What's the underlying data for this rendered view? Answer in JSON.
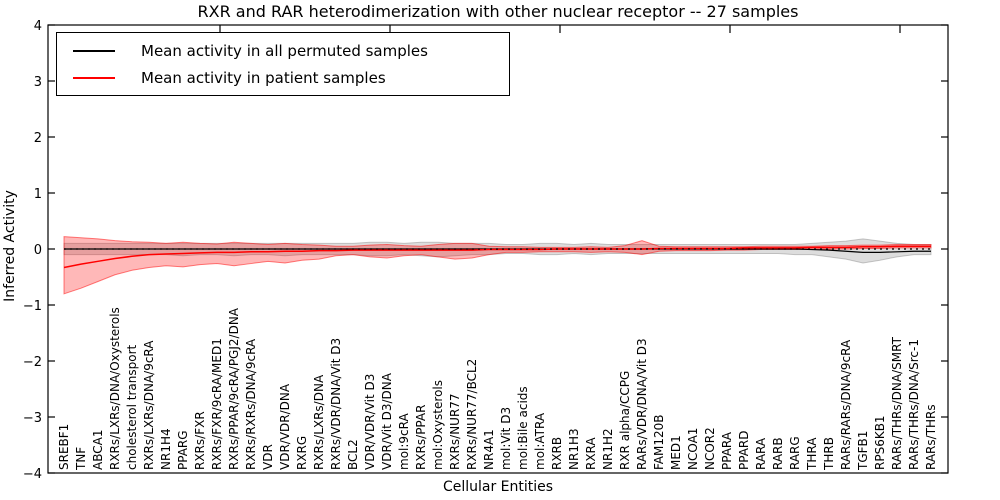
{
  "chart_data": {
    "type": "line",
    "title": "RXR and RAR heterodimerization with other nuclear receptor -- 27 samples",
    "xlabel": "Cellular Entities",
    "ylabel": "Inferred Activity",
    "ylim": [
      -4,
      4
    ],
    "yticks": [
      -4,
      -3,
      -2,
      -1,
      0,
      1,
      2,
      3,
      4
    ],
    "grid": false,
    "legend_position": "upper left",
    "zero_line": {
      "style": "dotted",
      "color": "#000000",
      "y": 0
    },
    "categories": [
      "SREBF1",
      "TNF",
      "ABCA1",
      "RXRs/LXRs/DNA/Oxysterols",
      "cholesterol transport",
      "RXRs/LXRs/DNA/9cRA",
      "NR1H4",
      "PPARG",
      "RXRs/FXR",
      "RXRs/FXR/9cRA/MED1",
      "RXRs/PPAR/9cRA/PGJ2/DNA",
      "RXRs/RXRs/DNA/9cRA",
      "VDR",
      "VDR/VDR/DNA",
      "RXRG",
      "RXRs/LXRs/DNA",
      "RXRs/VDR/DNA/Vit D3",
      "BCL2",
      "VDR/VDR/Vit D3",
      "VDR/Vit D3/DNA",
      "mol:9cRA",
      "RXRs/PPAR",
      "mol:Oxysterols",
      "RXRs/NUR77",
      "RXRs/NUR77/BCL2",
      "NR4A1",
      "mol:Vit D3",
      "mol:Bile acids",
      "mol:ATRA",
      "RXRB",
      "NR1H3",
      "RXRA",
      "NR1H2",
      "RXR alpha/CCPG",
      "RARs/VDR/DNA/Vit D3",
      "FAM120B",
      "MED1",
      "NCOA1",
      "NCOR2",
      "PPARA",
      "PPARD",
      "RARA",
      "RARB",
      "RARG",
      "THRA",
      "THRB",
      "RARs/RARs/DNA/9cRA",
      "TGFB1",
      "RPS6KB1",
      "RARs/THRs/DNA/SMRT",
      "RARs/THRs/DNA/Src-1",
      "RARs/THRs"
    ],
    "series": [
      {
        "name": "Mean activity in all permuted samples",
        "color": "#000000",
        "band_color": "rgba(120,120,120,0.25)",
        "band_edge_color": "rgba(120,120,120,0.4)",
        "values": [
          0,
          0,
          0,
          0,
          0,
          0,
          0,
          0,
          0,
          0,
          0,
          0,
          0,
          0,
          0,
          0,
          0,
          0,
          0,
          0,
          0,
          0,
          0,
          0,
          0,
          0,
          0,
          0,
          0,
          0,
          0,
          0,
          0,
          0,
          0,
          0,
          0,
          0,
          0,
          0,
          0,
          0,
          0,
          0,
          -0.01,
          -0.02,
          -0.04,
          -0.06,
          -0.06,
          -0.05,
          -0.04,
          -0.04
        ],
        "band_high": [
          0.1,
          0.1,
          0.1,
          0.1,
          0.1,
          0.1,
          0.1,
          0.1,
          0.1,
          0.1,
          0.1,
          0.1,
          0.1,
          0.1,
          0.1,
          0.1,
          0.1,
          0.1,
          0.12,
          0.12,
          0.1,
          0.12,
          0.12,
          0.1,
          0.1,
          0.1,
          0.08,
          0.08,
          0.1,
          0.1,
          0.08,
          0.1,
          0.08,
          0.08,
          0.08,
          0.08,
          0.08,
          0.08,
          0.08,
          0.08,
          0.08,
          0.08,
          0.08,
          0.08,
          0.1,
          0.12,
          0.14,
          0.18,
          0.14,
          0.1,
          0.08,
          0.08
        ],
        "band_low": [
          -0.1,
          -0.1,
          -0.1,
          -0.1,
          -0.1,
          -0.1,
          -0.1,
          -0.12,
          -0.1,
          -0.1,
          -0.12,
          -0.1,
          -0.1,
          -0.12,
          -0.1,
          -0.1,
          -0.1,
          -0.1,
          -0.12,
          -0.12,
          -0.1,
          -0.12,
          -0.14,
          -0.12,
          -0.1,
          -0.1,
          -0.08,
          -0.08,
          -0.1,
          -0.1,
          -0.08,
          -0.1,
          -0.08,
          -0.08,
          -0.08,
          -0.08,
          -0.08,
          -0.08,
          -0.08,
          -0.08,
          -0.08,
          -0.08,
          -0.08,
          -0.1,
          -0.1,
          -0.14,
          -0.18,
          -0.25,
          -0.2,
          -0.14,
          -0.1,
          -0.1
        ]
      },
      {
        "name": "Mean activity in patient samples",
        "color": "#ff0000",
        "band_color": "rgba(255,0,0,0.28)",
        "band_edge_color": "rgba(255,0,0,0.5)",
        "values": [
          -0.33,
          -0.27,
          -0.22,
          -0.17,
          -0.13,
          -0.1,
          -0.09,
          -0.08,
          -0.07,
          -0.06,
          -0.06,
          -0.05,
          -0.05,
          -0.04,
          -0.04,
          -0.03,
          -0.03,
          -0.02,
          -0.02,
          -0.02,
          -0.02,
          -0.02,
          -0.02,
          -0.02,
          -0.02,
          -0.01,
          -0.01,
          -0.01,
          -0.01,
          0.0,
          0.0,
          0.0,
          0.0,
          0.0,
          0.0,
          0.01,
          0.01,
          0.01,
          0.01,
          0.01,
          0.02,
          0.02,
          0.02,
          0.02,
          0.03,
          0.03,
          0.03,
          0.04,
          0.04,
          0.05,
          0.05,
          0.05
        ],
        "band_high": [
          0.22,
          0.2,
          0.18,
          0.15,
          0.13,
          0.12,
          0.1,
          0.12,
          0.1,
          0.09,
          0.12,
          0.1,
          0.08,
          0.1,
          0.08,
          0.07,
          0.05,
          0.05,
          0.07,
          0.08,
          0.06,
          0.05,
          0.08,
          0.1,
          0.1,
          0.05,
          0.04,
          0.04,
          0.03,
          0.03,
          0.03,
          0.04,
          0.03,
          0.06,
          0.15,
          0.05,
          0.04,
          0.04,
          0.04,
          0.04,
          0.04,
          0.05,
          0.05,
          0.05,
          0.05,
          0.06,
          0.06,
          0.07,
          0.07,
          0.08,
          0.08,
          0.08
        ],
        "band_low": [
          -0.8,
          -0.7,
          -0.58,
          -0.46,
          -0.38,
          -0.33,
          -0.3,
          -0.32,
          -0.28,
          -0.26,
          -0.3,
          -0.26,
          -0.22,
          -0.25,
          -0.2,
          -0.18,
          -0.12,
          -0.1,
          -0.14,
          -0.16,
          -0.12,
          -0.1,
          -0.14,
          -0.18,
          -0.16,
          -0.1,
          -0.06,
          -0.06,
          -0.05,
          -0.05,
          -0.05,
          -0.06,
          -0.05,
          -0.06,
          -0.1,
          -0.04,
          -0.03,
          -0.03,
          -0.03,
          -0.02,
          -0.02,
          -0.01,
          -0.01,
          -0.01,
          0.0,
          0.0,
          0.0,
          0.01,
          0.01,
          0.02,
          0.02,
          0.02
        ]
      }
    ]
  },
  "colors": {
    "axis": "#000000",
    "background": "#ffffff",
    "patient_line": "#ff0000",
    "permuted_line": "#000000"
  }
}
